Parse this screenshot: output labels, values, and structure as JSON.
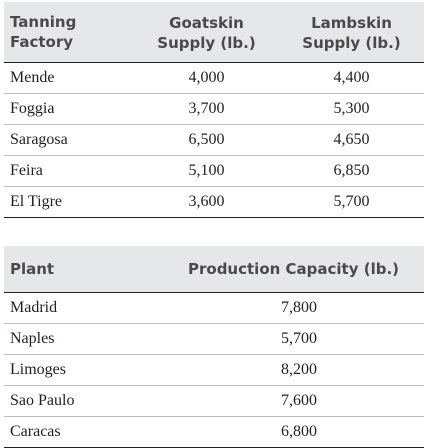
{
  "supply_table": {
    "headers": {
      "col1_line1": "Tanning",
      "col1_line2": "Factory",
      "col2_line1": "Goatskin",
      "col2_line2": "Supply (lb.)",
      "col3_line1": "Lambskin",
      "col3_line2": "Supply (lb.)"
    },
    "rows": [
      {
        "factory": "Mende",
        "goatskin": "4,000",
        "lambskin": "4,400"
      },
      {
        "factory": "Foggia",
        "goatskin": "3,700",
        "lambskin": "5,300"
      },
      {
        "factory": "Saragosa",
        "goatskin": "6,500",
        "lambskin": "4,650"
      },
      {
        "factory": "Feira",
        "goatskin": "5,100",
        "lambskin": "6,850"
      },
      {
        "factory": "El Tigre",
        "goatskin": "3,600",
        "lambskin": "5,700"
      }
    ]
  },
  "capacity_table": {
    "headers": {
      "col1": "Plant",
      "col2": "Production Capacity (lb.)"
    },
    "rows": [
      {
        "plant": "Madrid",
        "capacity": "7,800"
      },
      {
        "plant": "Naples",
        "capacity": "5,700"
      },
      {
        "plant": "Limoges",
        "capacity": "8,200"
      },
      {
        "plant": "Sao Paulo",
        "capacity": "7,600"
      },
      {
        "plant": "Caracas",
        "capacity": "6,800"
      }
    ]
  }
}
